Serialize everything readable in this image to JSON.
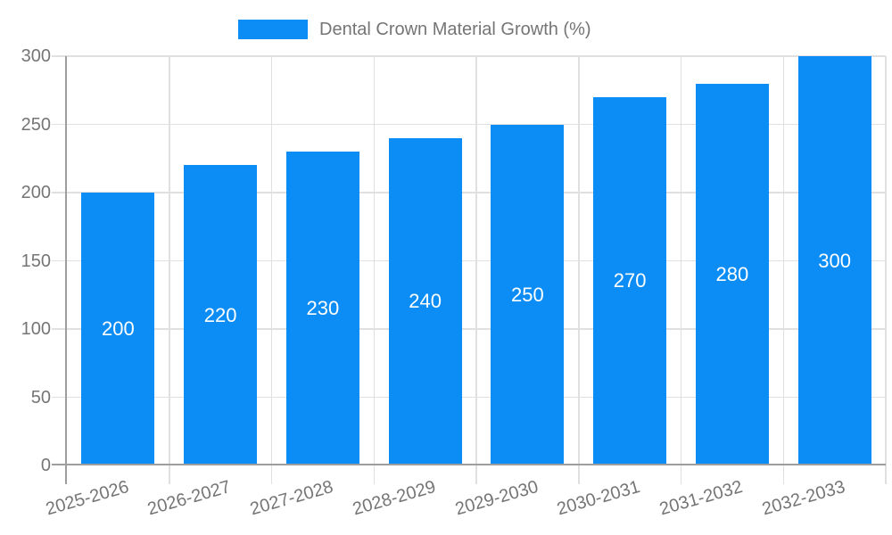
{
  "chart_data": {
    "type": "bar",
    "title": "Dental Crown Material Growth (%)",
    "categories": [
      "2025-2026",
      "2026-2027",
      "2027-2028",
      "2028-2029",
      "2029-2030",
      "2030-2031",
      "2031-2032",
      "2032-2033"
    ],
    "values": [
      200,
      220,
      230,
      240,
      250,
      270,
      280,
      300
    ],
    "xlabel": "",
    "ylabel": "",
    "ylim": [
      0,
      300
    ],
    "yticks": [
      0,
      50,
      100,
      150,
      200,
      250,
      300
    ],
    "grid": true,
    "legend_position": "top",
    "value_labels_inside_bars": true
  },
  "colors": {
    "bar": "#0b8df5",
    "grid": "#e0e0e0",
    "axis": "#9e9e9e",
    "text": "#757575",
    "value_label": "#ffffff",
    "background": "#ffffff"
  }
}
